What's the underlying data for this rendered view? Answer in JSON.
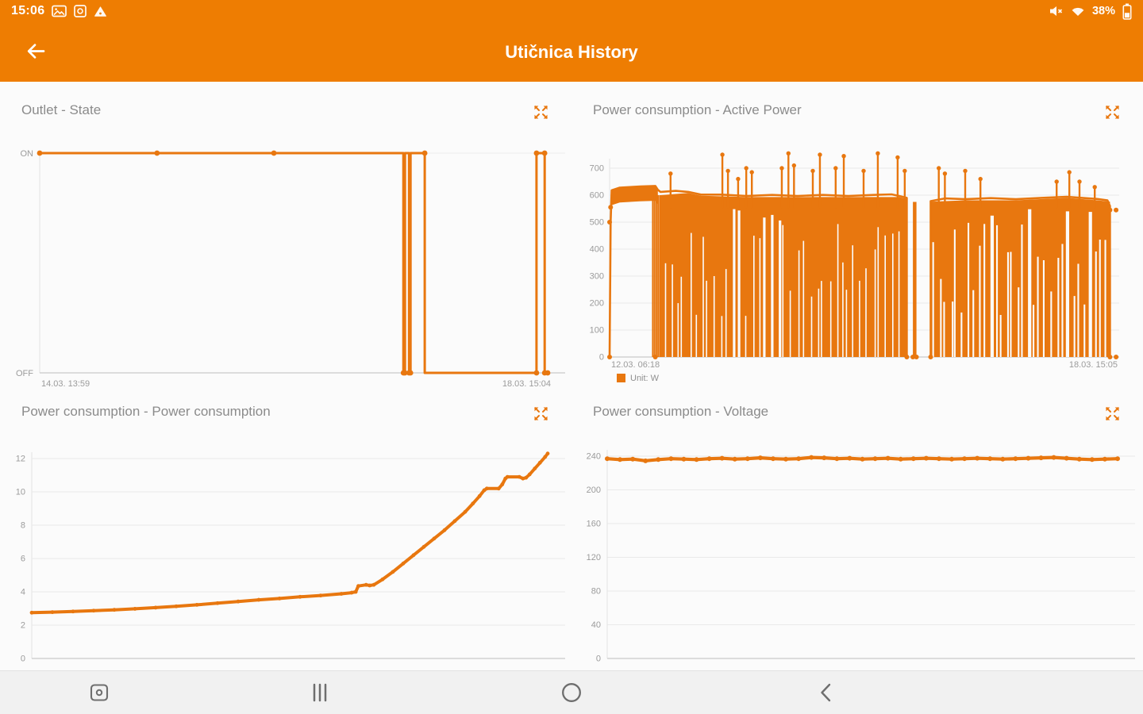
{
  "colors": {
    "brand": "#EE7D02",
    "chart": "#E8770F",
    "grid": "#EAEAEA",
    "axis": "#C9C9C9",
    "axis_light": "#E3E3E3",
    "label": "#9B9B9B",
    "title": "#8B8B8B",
    "bg": "#FBFBFB",
    "nav_icon": "#6E6E6E"
  },
  "status_bar": {
    "time": "15:06",
    "battery": "38%",
    "left_icons": [
      "gallery-icon",
      "screen-capture-icon",
      "file-transfer-icon"
    ],
    "right_icons": [
      "volume-muted-icon",
      "wifi-icon",
      "battery-icon"
    ]
  },
  "app_bar": {
    "title": "Utičnica History",
    "back_icon": "back-arrow-icon"
  },
  "nav_bar": {
    "buttons": [
      "screen-capture-button",
      "recents-button",
      "home-button",
      "back-button"
    ]
  },
  "chart_data": [
    {
      "type": "line",
      "title": "Outlet - State",
      "y_ticks": [
        "ON",
        "OFF"
      ],
      "x_labels": [
        "14.03. 13:59",
        "18.03. 15:04"
      ],
      "step_points": [
        [
          0,
          1
        ],
        [
          0.716,
          1
        ],
        [
          0.716,
          0
        ],
        [
          0.719,
          0
        ],
        [
          0.719,
          1
        ],
        [
          0.727,
          1
        ],
        [
          0.727,
          0
        ],
        [
          0.73,
          0
        ],
        [
          0.73,
          1
        ],
        [
          0.758,
          1
        ],
        [
          0.758,
          0
        ],
        [
          0.978,
          0
        ],
        [
          0.978,
          1
        ],
        [
          0.994,
          1
        ],
        [
          0.994,
          0
        ],
        [
          1,
          0
        ]
      ],
      "markers": [
        [
          0,
          1
        ],
        [
          0.231,
          1
        ],
        [
          0.461,
          1
        ],
        [
          0.716,
          0
        ],
        [
          0.719,
          0
        ],
        [
          0.727,
          0
        ],
        [
          0.73,
          0
        ],
        [
          0.758,
          1
        ],
        [
          0.978,
          0
        ],
        [
          0.978,
          1
        ],
        [
          0.994,
          1
        ],
        [
          0.994,
          0
        ],
        [
          1,
          0
        ]
      ]
    },
    {
      "type": "area-dense",
      "title": "Power consumption - Active Power",
      "legend": "Unit: W",
      "y_ticks": [
        0,
        100,
        200,
        300,
        400,
        500,
        600,
        700
      ],
      "ylim": [
        0,
        760
      ],
      "x_labels": [
        "12.03. 06:18",
        "18.03. 15:05"
      ],
      "envelope_segments": [
        [
          [
            0,
            0
          ],
          [
            0.002,
            500
          ],
          [
            0.004,
            618
          ],
          [
            0.02,
            628
          ],
          [
            0.06,
            632
          ],
          [
            0.09,
            634
          ],
          [
            0.095,
            620
          ],
          [
            0.1,
            612
          ],
          [
            0.13,
            616
          ],
          [
            0.155,
            612
          ],
          [
            0.18,
            602
          ],
          [
            0.22,
            602
          ],
          [
            0.27,
            597
          ],
          [
            0.32,
            601
          ],
          [
            0.37,
            597
          ],
          [
            0.42,
            601
          ],
          [
            0.47,
            597
          ],
          [
            0.52,
            601
          ],
          [
            0.555,
            603
          ],
          [
            0.57,
            597
          ],
          [
            0.585,
            590
          ],
          [
            0.585,
            0
          ]
        ],
        [
          [
            0.632,
            0
          ],
          [
            0.632,
            578
          ],
          [
            0.66,
            588
          ],
          [
            0.7,
            585
          ],
          [
            0.75,
            589
          ],
          [
            0.8,
            585
          ],
          [
            0.85,
            590
          ],
          [
            0.9,
            594
          ],
          [
            0.93,
            590
          ],
          [
            0.96,
            586
          ],
          [
            0.98,
            581
          ],
          [
            0.985,
            560
          ],
          [
            0.985,
            0
          ]
        ]
      ],
      "band_only": {
        "x0": 0.004,
        "x1": 0.095,
        "thickness": 55
      },
      "solid_regions": [
        {
          "pts": [
            [
              0.1,
              600
            ],
            [
              0.155,
              608
            ],
            [
              0.18,
              598
            ],
            [
              0.27,
              593
            ],
            [
              0.37,
              593
            ],
            [
              0.47,
              593
            ],
            [
              0.57,
              593
            ],
            [
              0.585,
              586
            ]
          ]
        },
        {
          "pts": [
            [
              0.632,
              576
            ],
            [
              0.7,
              581
            ],
            [
              0.8,
              581
            ],
            [
              0.9,
              590
            ],
            [
              0.96,
              581
            ],
            [
              0.985,
              576
            ]
          ]
        }
      ],
      "slit_regions": [
        {
          "x0": 0.1,
          "x1": 0.585,
          "every": 8,
          "w": 1.6,
          "seed": 3
        },
        {
          "x0": 0.632,
          "x1": 0.985,
          "every": 7,
          "w": 2.1,
          "seed": 11
        }
      ],
      "leading_drops": {
        "x0": 0.085,
        "x1": 0.099,
        "count": 5
      },
      "columns": [
        {
          "x0": 0.597,
          "x1": 0.604,
          "top": 575
        }
      ],
      "spikes": [
        [
          0.12,
          680
        ],
        [
          0.222,
          750
        ],
        [
          0.233,
          690
        ],
        [
          0.253,
          660
        ],
        [
          0.269,
          700
        ],
        [
          0.28,
          685
        ],
        [
          0.339,
          700
        ],
        [
          0.352,
          755
        ],
        [
          0.363,
          710
        ],
        [
          0.4,
          690
        ],
        [
          0.414,
          750
        ],
        [
          0.445,
          700
        ],
        [
          0.461,
          745
        ],
        [
          0.5,
          690
        ],
        [
          0.528,
          755
        ],
        [
          0.567,
          740
        ],
        [
          0.581,
          690
        ],
        [
          0.648,
          700
        ],
        [
          0.66,
          680
        ],
        [
          0.7,
          690
        ],
        [
          0.73,
          660
        ],
        [
          0.88,
          650
        ],
        [
          0.905,
          685
        ],
        [
          0.925,
          650
        ],
        [
          0.955,
          630
        ]
      ],
      "dots": [
        [
          0,
          0
        ],
        [
          0,
          500
        ],
        [
          0.002,
          555
        ],
        [
          0.09,
          0
        ],
        [
          0.585,
          0
        ],
        [
          0.597,
          0
        ],
        [
          0.604,
          0
        ],
        [
          0.632,
          0
        ],
        [
          0.985,
          0
        ],
        [
          0.997,
          0
        ],
        [
          0.997,
          545
        ],
        [
          0.985,
          545
        ]
      ]
    },
    {
      "type": "line",
      "title": "Power consumption - Power consumption",
      "y_ticks": [
        0,
        2,
        4,
        6,
        8,
        10,
        12
      ],
      "ylim": [
        0,
        12
      ],
      "points": [
        [
          0,
          2.75
        ],
        [
          0.04,
          2.78
        ],
        [
          0.08,
          2.82
        ],
        [
          0.12,
          2.87
        ],
        [
          0.16,
          2.92
        ],
        [
          0.2,
          2.98
        ],
        [
          0.24,
          3.05
        ],
        [
          0.28,
          3.13
        ],
        [
          0.32,
          3.22
        ],
        [
          0.36,
          3.32
        ],
        [
          0.4,
          3.42
        ],
        [
          0.44,
          3.52
        ],
        [
          0.48,
          3.6
        ],
        [
          0.52,
          3.7
        ],
        [
          0.56,
          3.78
        ],
        [
          0.6,
          3.88
        ],
        [
          0.62,
          3.95
        ],
        [
          0.628,
          4.0
        ],
        [
          0.633,
          4.35
        ],
        [
          0.648,
          4.42
        ],
        [
          0.655,
          4.38
        ],
        [
          0.663,
          4.42
        ],
        [
          0.68,
          4.75
        ],
        [
          0.7,
          5.2
        ],
        [
          0.72,
          5.7
        ],
        [
          0.74,
          6.2
        ],
        [
          0.76,
          6.7
        ],
        [
          0.78,
          7.2
        ],
        [
          0.8,
          7.7
        ],
        [
          0.82,
          8.25
        ],
        [
          0.84,
          8.8
        ],
        [
          0.855,
          9.3
        ],
        [
          0.868,
          9.75
        ],
        [
          0.877,
          10.1
        ],
        [
          0.882,
          10.2
        ],
        [
          0.905,
          10.2
        ],
        [
          0.912,
          10.45
        ],
        [
          0.918,
          10.8
        ],
        [
          0.922,
          10.9
        ],
        [
          0.945,
          10.9
        ],
        [
          0.952,
          10.8
        ],
        [
          0.958,
          10.85
        ],
        [
          0.965,
          11.05
        ],
        [
          0.975,
          11.4
        ],
        [
          0.985,
          11.75
        ],
        [
          0.995,
          12.1
        ],
        [
          1,
          12.3
        ]
      ]
    },
    {
      "type": "line",
      "title": "Power consumption - Voltage",
      "y_ticks": [
        0,
        40,
        80,
        120,
        160,
        200,
        240
      ],
      "ylim": [
        0,
        240
      ],
      "points": [
        [
          0,
          237
        ],
        [
          0.025,
          236
        ],
        [
          0.05,
          236.5
        ],
        [
          0.075,
          234.5
        ],
        [
          0.1,
          236
        ],
        [
          0.125,
          237
        ],
        [
          0.15,
          236.5
        ],
        [
          0.175,
          236
        ],
        [
          0.2,
          237
        ],
        [
          0.225,
          237.5
        ],
        [
          0.25,
          236.5
        ],
        [
          0.275,
          237
        ],
        [
          0.3,
          238
        ],
        [
          0.325,
          237
        ],
        [
          0.35,
          236.5
        ],
        [
          0.375,
          237
        ],
        [
          0.4,
          238.5
        ],
        [
          0.425,
          238
        ],
        [
          0.45,
          237
        ],
        [
          0.475,
          237.5
        ],
        [
          0.5,
          236.5
        ],
        [
          0.525,
          237
        ],
        [
          0.55,
          237.5
        ],
        [
          0.575,
          236.5
        ],
        [
          0.6,
          237
        ],
        [
          0.625,
          237.5
        ],
        [
          0.65,
          237
        ],
        [
          0.675,
          236.5
        ],
        [
          0.7,
          237
        ],
        [
          0.725,
          237.5
        ],
        [
          0.75,
          237
        ],
        [
          0.775,
          236.5
        ],
        [
          0.8,
          237
        ],
        [
          0.825,
          237.5
        ],
        [
          0.85,
          238
        ],
        [
          0.875,
          238.5
        ],
        [
          0.9,
          237.5
        ],
        [
          0.925,
          236.5
        ],
        [
          0.95,
          236
        ],
        [
          0.975,
          236.5
        ],
        [
          1,
          237
        ]
      ]
    }
  ]
}
